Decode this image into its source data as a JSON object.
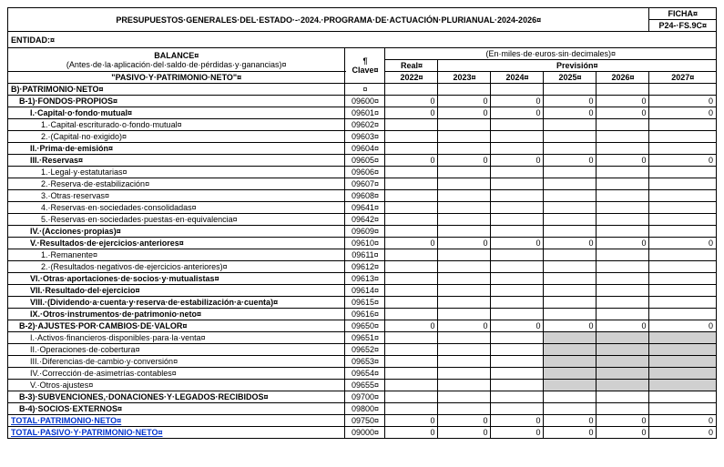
{
  "header": {
    "title": "PRESUPUESTOS·GENERALES·DEL·ESTADO·-·2024.·PROGRAMA·DE·ACTUACIÓN·PLURIANUAL·2024-2026",
    "ficha": "FICHA",
    "ficha_code": "P24-·FS.9C",
    "entidad": "ENTIDAD:"
  },
  "balance": {
    "title": "BALANCE",
    "sub1": "(Antes·de·la·aplicación·del·saldo·de·pérdidas·y·ganancias)",
    "sub2": "\"PASIVO·Y·PATRIMONIO·NETO\"",
    "clave": "Clave",
    "unit": "(En·miles·de·euros·sin·decimales)",
    "real": "Real",
    "prevision": "Previsión"
  },
  "years": [
    "2022",
    "2023",
    "2024",
    "2025",
    "2026",
    "2027"
  ],
  "rows": [
    {
      "label": "B)·PATRIMONIO·NETO",
      "clave": "",
      "vals": [
        "",
        "",
        "",
        "",
        "",
        ""
      ],
      "cls": "bold",
      "shade": []
    },
    {
      "label": "B-1)·FONDOS·PROPIOS",
      "clave": "09600",
      "vals": [
        "0",
        "0",
        "0",
        "0",
        "0",
        "0"
      ],
      "cls": "bold ind1",
      "shade": []
    },
    {
      "label": "I.·Capital·o·fondo·mutual",
      "clave": "09601",
      "vals": [
        "0",
        "0",
        "0",
        "0",
        "0",
        "0"
      ],
      "cls": "bold ind2",
      "shade": []
    },
    {
      "label": "1.·Capital·escriturado·o·fondo·mutual",
      "clave": "09602",
      "vals": [
        "",
        "",
        "",
        "",
        "",
        ""
      ],
      "cls": "ind3",
      "shade": []
    },
    {
      "label": "2.·(Capital·no·exigido)",
      "clave": "09603",
      "vals": [
        "",
        "",
        "",
        "",
        "",
        ""
      ],
      "cls": "ind3",
      "shade": []
    },
    {
      "label": "II.·Prima·de·emisión",
      "clave": "09604",
      "vals": [
        "",
        "",
        "",
        "",
        "",
        ""
      ],
      "cls": "bold ind2",
      "shade": []
    },
    {
      "label": "III.·Reservas",
      "clave": "09605",
      "vals": [
        "0",
        "0",
        "0",
        "0",
        "0",
        "0"
      ],
      "cls": "bold ind2",
      "shade": []
    },
    {
      "label": "1.·Legal·y·estatutarias",
      "clave": "09606",
      "vals": [
        "",
        "",
        "",
        "",
        "",
        ""
      ],
      "cls": "ind3",
      "shade": []
    },
    {
      "label": "2.·Reserva·de·estabilización",
      "clave": "09607",
      "vals": [
        "",
        "",
        "",
        "",
        "",
        ""
      ],
      "cls": "ind3",
      "shade": []
    },
    {
      "label": "3.·Otras·reservas",
      "clave": "09608",
      "vals": [
        "",
        "",
        "",
        "",
        "",
        ""
      ],
      "cls": "ind3",
      "shade": []
    },
    {
      "label": "4.·Reservas·en·sociedades·consolidadas",
      "clave": "09641",
      "vals": [
        "",
        "",
        "",
        "",
        "",
        ""
      ],
      "cls": "ind3",
      "shade": []
    },
    {
      "label": "5.·Reservas·en·sociedades·puestas·en·equivalencia",
      "clave": "09642",
      "vals": [
        "",
        "",
        "",
        "",
        "",
        ""
      ],
      "cls": "ind3",
      "shade": []
    },
    {
      "label": "IV.·(Acciones·propias)",
      "clave": "09609",
      "vals": [
        "",
        "",
        "",
        "",
        "",
        ""
      ],
      "cls": "bold ind2",
      "shade": []
    },
    {
      "label": "V.·Resultados·de·ejercicios·anteriores",
      "clave": "09610",
      "vals": [
        "0",
        "0",
        "0",
        "0",
        "0",
        "0"
      ],
      "cls": "bold ind2",
      "shade": []
    },
    {
      "label": "1.·Remanente",
      "clave": "09611",
      "vals": [
        "",
        "",
        "",
        "",
        "",
        ""
      ],
      "cls": "ind3",
      "shade": []
    },
    {
      "label": "2.·(Resultados·negativos·de·ejercicios·anteriores)",
      "clave": "09612",
      "vals": [
        "",
        "",
        "",
        "",
        "",
        ""
      ],
      "cls": "ind3",
      "shade": []
    },
    {
      "label": "VI.·Otras·aportaciones·de·socios·y·mutualistas",
      "clave": "09613",
      "vals": [
        "",
        "",
        "",
        "",
        "",
        ""
      ],
      "cls": "bold ind2",
      "shade": []
    },
    {
      "label": "VII.·Resultado·del·ejercicio",
      "clave": "09614",
      "vals": [
        "",
        "",
        "",
        "",
        "",
        ""
      ],
      "cls": "bold ind2",
      "shade": []
    },
    {
      "label": "VIII.·(Dividendo·a·cuenta·y·reserva·de·estabilización·a·cuenta)",
      "clave": "09615",
      "vals": [
        "",
        "",
        "",
        "",
        "",
        ""
      ],
      "cls": "bold ind2",
      "shade": []
    },
    {
      "label": "IX.·Otros·instrumentos·de·patrimonio·neto",
      "clave": "09616",
      "vals": [
        "",
        "",
        "",
        "",
        "",
        ""
      ],
      "cls": "bold ind2",
      "shade": []
    },
    {
      "label": "B-2)·AJUSTES·POR·CAMBIOS·DE·VALOR",
      "clave": "09650",
      "vals": [
        "0",
        "0",
        "0",
        "0",
        "0",
        "0"
      ],
      "cls": "bold ind1",
      "shade": []
    },
    {
      "label": "I.·Activos·financieros·disponibles·para·la·venta",
      "clave": "09651",
      "vals": [
        "",
        "",
        "",
        "",
        "",
        ""
      ],
      "cls": "ind2",
      "shade": [
        3,
        4,
        5
      ]
    },
    {
      "label": "II.·Operaciones·de·cobertura",
      "clave": "09652",
      "vals": [
        "",
        "",
        "",
        "",
        "",
        ""
      ],
      "cls": "ind2",
      "shade": [
        3,
        4,
        5
      ]
    },
    {
      "label": "III.·Diferencias·de·cambio·y·conversión",
      "clave": "09653",
      "vals": [
        "",
        "",
        "",
        "",
        "",
        ""
      ],
      "cls": "ind2",
      "shade": [
        3,
        4,
        5
      ]
    },
    {
      "label": "IV.·Corrección·de·asimetrías·contables",
      "clave": "09654",
      "vals": [
        "",
        "",
        "",
        "",
        "",
        ""
      ],
      "cls": "ind2",
      "shade": [
        3,
        4,
        5
      ]
    },
    {
      "label": "V.·Otros·ajustes",
      "clave": "09655",
      "vals": [
        "",
        "",
        "",
        "",
        "",
        ""
      ],
      "cls": "ind2",
      "shade": [
        3,
        4,
        5
      ]
    },
    {
      "label": "B-3)·SUBVENCIONES,·DONACIONES·Y·LEGADOS·RECIBIDOS",
      "clave": "09700",
      "vals": [
        "",
        "",
        "",
        "",
        "",
        ""
      ],
      "cls": "bold ind1",
      "shade": []
    },
    {
      "label": "B-4)·SOCIOS·EXTERNOS",
      "clave": "09800",
      "vals": [
        "",
        "",
        "",
        "",
        "",
        ""
      ],
      "cls": "bold ind1",
      "shade": []
    },
    {
      "label": "TOTAL·PATRIMONIO·NETO",
      "clave": "09750",
      "vals": [
        "0",
        "0",
        "0",
        "0",
        "0",
        "0"
      ],
      "cls": "total",
      "shade": []
    },
    {
      "label": "TOTAL·PASIVO·Y·PATRIMONIO·NETO",
      "clave": "09000",
      "vals": [
        "0",
        "0",
        "0",
        "0",
        "0",
        "0"
      ],
      "cls": "total",
      "shade": []
    }
  ]
}
